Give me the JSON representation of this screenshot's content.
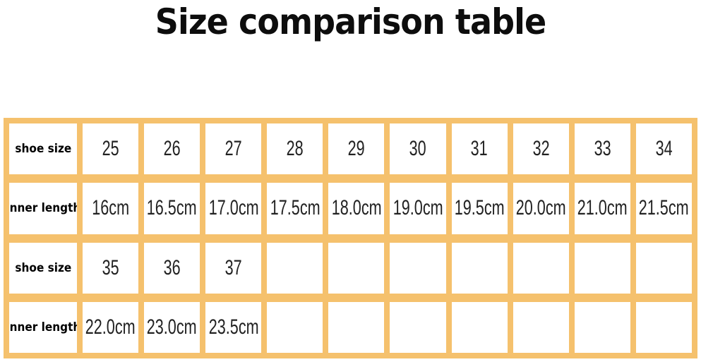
{
  "title": "Size comparison table",
  "colors": {
    "border": "#f5c16d",
    "cell": "#ffffff"
  },
  "rows": [
    {
      "label": "shoe size",
      "values": [
        "25",
        "26",
        "27",
        "28",
        "29",
        "30",
        "31",
        "32",
        "33",
        "34"
      ]
    },
    {
      "label": "Inner length",
      "values": [
        "16cm",
        "16.5cm",
        "17.0cm",
        "17.5cm",
        "18.0cm",
        "19.0cm",
        "19.5cm",
        "20.0cm",
        "21.0cm",
        "21.5cm"
      ]
    },
    {
      "label": "shoe size",
      "values": [
        "35",
        "36",
        "37",
        "",
        "",
        "",
        "",
        "",
        "",
        ""
      ]
    },
    {
      "label": "Inner length",
      "values": [
        "22.0cm",
        "23.0cm",
        "23.5cm",
        "",
        "",
        "",
        "",
        "",
        "",
        ""
      ]
    }
  ]
}
